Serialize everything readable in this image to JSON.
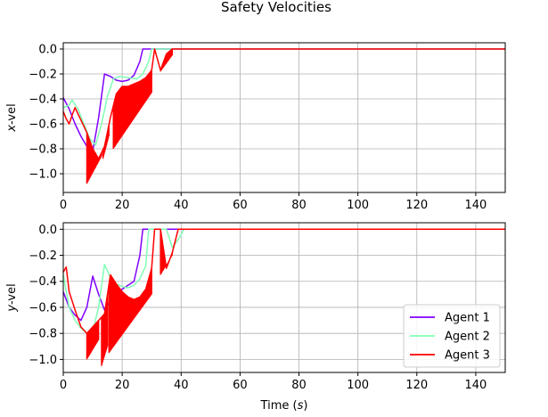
{
  "chart_data": {
    "type": "line",
    "title": "Safety Velocities",
    "grid": true,
    "legend": {
      "placement": "lower-right",
      "panel": "bottom"
    },
    "colors": {
      "Agent 1": "#8000ff",
      "Agent 2": "#80ffb4",
      "Agent 3": "#ff0000"
    },
    "panels": [
      {
        "id": "top",
        "ylabel_italic": "x",
        "ylabel_rest": "-vel",
        "xlim": [
          0,
          150
        ],
        "ylim": [
          -1.15,
          0.05
        ],
        "xticks": [
          0,
          20,
          40,
          60,
          80,
          100,
          120,
          140
        ],
        "yticks": [
          0.0,
          -0.2,
          -0.4,
          -0.6,
          -0.8,
          -1.0
        ],
        "xtick_labels": [
          "0",
          "20",
          "40",
          "60",
          "80",
          "100",
          "120",
          "140"
        ],
        "ytick_labels": [
          "0.0",
          "−0.2",
          "−0.4",
          "−0.6",
          "−0.8",
          "−1.0"
        ],
        "series": [
          {
            "name": "Agent 1",
            "points": [
              [
                0,
                -0.39
              ],
              [
                2,
                -0.48
              ],
              [
                4,
                -0.6
              ],
              [
                6,
                -0.7
              ],
              [
                8,
                -0.78
              ],
              [
                10,
                -0.82
              ],
              [
                12,
                -0.55
              ],
              [
                14,
                -0.2
              ],
              [
                16,
                -0.22
              ],
              [
                18,
                -0.25
              ],
              [
                20,
                -0.26
              ],
              [
                22,
                -0.25
              ],
              [
                24,
                -0.21
              ],
              [
                26,
                -0.1
              ],
              [
                27,
                0.0
              ],
              [
                150,
                0.0
              ]
            ],
            "oscillations": []
          },
          {
            "name": "Agent 2",
            "points": [
              [
                0,
                -0.47
              ],
              [
                2,
                -0.45
              ],
              [
                3,
                -0.41
              ],
              [
                5,
                -0.48
              ],
              [
                7,
                -0.6
              ],
              [
                9,
                -0.72
              ],
              [
                11,
                -0.77
              ],
              [
                13,
                -0.6
              ],
              [
                15,
                -0.38
              ],
              [
                17,
                -0.24
              ],
              [
                19,
                -0.22
              ],
              [
                22,
                -0.23
              ],
              [
                25,
                -0.24
              ],
              [
                27,
                -0.2
              ],
              [
                29,
                -0.1
              ],
              [
                30,
                0.0
              ],
              [
                150,
                0.0
              ]
            ],
            "oscillations": []
          },
          {
            "name": "Agent 3",
            "points": [
              [
                0,
                -0.5
              ],
              [
                1,
                -0.56
              ],
              [
                2,
                -0.6
              ],
              [
                3,
                -0.53
              ],
              [
                4,
                -0.47
              ],
              [
                6,
                -0.57
              ],
              [
                8,
                -0.67
              ],
              [
                10,
                -0.8
              ],
              [
                12,
                -0.88
              ],
              [
                14,
                -0.78
              ],
              [
                16,
                -0.55
              ],
              [
                18,
                -0.36
              ],
              [
                20,
                -0.3
              ],
              [
                22,
                -0.3
              ],
              [
                24,
                -0.28
              ],
              [
                26,
                -0.26
              ],
              [
                28,
                -0.23
              ],
              [
                30,
                -0.17
              ],
              [
                31,
                0.0
              ],
              [
                33,
                -0.17
              ],
              [
                35,
                -0.04
              ],
              [
                37,
                0.0
              ],
              [
                150,
                0.0
              ]
            ],
            "oscillations": [
              {
                "from": 8,
                "to": 13,
                "low_start": -1.08,
                "low_end": -0.86
              },
              {
                "from": 13.5,
                "to": 15.5,
                "low_start": -0.88,
                "low_end": -0.7
              },
              {
                "from": 17,
                "to": 30,
                "low_start": -0.8,
                "low_end": -0.35
              },
              {
                "from": 33,
                "to": 37,
                "low_start": -0.18,
                "low_end": -0.05
              }
            ]
          }
        ]
      },
      {
        "id": "bottom",
        "ylabel_italic": "y",
        "ylabel_rest": "-vel",
        "xlabel_prefix": "Time (",
        "xlabel_italic": "s",
        "xlabel_suffix": ")",
        "xlim": [
          0,
          150
        ],
        "ylim": [
          -1.1,
          0.05
        ],
        "xticks": [
          0,
          20,
          40,
          60,
          80,
          100,
          120,
          140
        ],
        "yticks": [
          0.0,
          -0.2,
          -0.4,
          -0.6,
          -0.8,
          -1.0
        ],
        "xtick_labels": [
          "0",
          "20",
          "40",
          "60",
          "80",
          "100",
          "120",
          "140"
        ],
        "ytick_labels": [
          "0.0",
          "−0.2",
          "−0.4",
          "−0.6",
          "−0.8",
          "−1.0"
        ],
        "series": [
          {
            "name": "Agent 1",
            "points": [
              [
                0,
                -0.48
              ],
              [
                2,
                -0.6
              ],
              [
                4,
                -0.66
              ],
              [
                6,
                -0.7
              ],
              [
                8,
                -0.6
              ],
              [
                10,
                -0.36
              ],
              [
                12,
                -0.5
              ],
              [
                14,
                -0.62
              ],
              [
                16,
                -0.55
              ],
              [
                18,
                -0.5
              ],
              [
                20,
                -0.46
              ],
              [
                22,
                -0.43
              ],
              [
                24,
                -0.4
              ],
              [
                26,
                -0.2
              ],
              [
                27,
                0.0
              ],
              [
                150,
                0.0
              ]
            ],
            "oscillations": []
          },
          {
            "name": "Agent 2",
            "points": [
              [
                0,
                -0.35
              ],
              [
                2,
                -0.6
              ],
              [
                4,
                -0.7
              ],
              [
                6,
                -0.76
              ],
              [
                8,
                -0.8
              ],
              [
                10,
                -0.78
              ],
              [
                12,
                -0.6
              ],
              [
                14,
                -0.27
              ],
              [
                16,
                -0.37
              ],
              [
                18,
                -0.42
              ],
              [
                20,
                -0.44
              ],
              [
                22,
                -0.45
              ],
              [
                24,
                -0.43
              ],
              [
                26,
                -0.38
              ],
              [
                28,
                -0.28
              ],
              [
                29,
                0.0
              ],
              [
                35,
                0.0
              ],
              [
                37,
                -0.14
              ],
              [
                39,
                -0.08
              ],
              [
                41,
                0.0
              ],
              [
                150,
                0.0
              ]
            ],
            "oscillations": []
          },
          {
            "name": "Agent 3",
            "points": [
              [
                0,
                -0.33
              ],
              [
                1,
                -0.29
              ],
              [
                2,
                -0.48
              ],
              [
                4,
                -0.62
              ],
              [
                6,
                -0.75
              ],
              [
                8,
                -0.8
              ],
              [
                10,
                -0.75
              ],
              [
                12,
                -0.7
              ],
              [
                14,
                -0.65
              ],
              [
                16,
                -0.35
              ],
              [
                18,
                -0.42
              ],
              [
                20,
                -0.48
              ],
              [
                22,
                -0.52
              ],
              [
                24,
                -0.54
              ],
              [
                26,
                -0.52
              ],
              [
                28,
                -0.46
              ],
              [
                30,
                -0.3
              ],
              [
                31,
                0.0
              ],
              [
                33,
                0.0
              ],
              [
                35,
                -0.3
              ],
              [
                37,
                -0.18
              ],
              [
                39,
                0.0
              ],
              [
                150,
                0.0
              ]
            ],
            "oscillations": [
              {
                "from": 8,
                "to": 12,
                "low_start": -1.0,
                "low_end": -0.85
              },
              {
                "from": 13,
                "to": 15,
                "low_start": -1.05,
                "low_end": -0.9
              },
              {
                "from": 15.5,
                "to": 30,
                "low_start": -0.95,
                "low_end": -0.5
              },
              {
                "from": 33,
                "to": 37,
                "low_start": -0.35,
                "low_end": -0.2
              }
            ]
          }
        ]
      }
    ]
  }
}
